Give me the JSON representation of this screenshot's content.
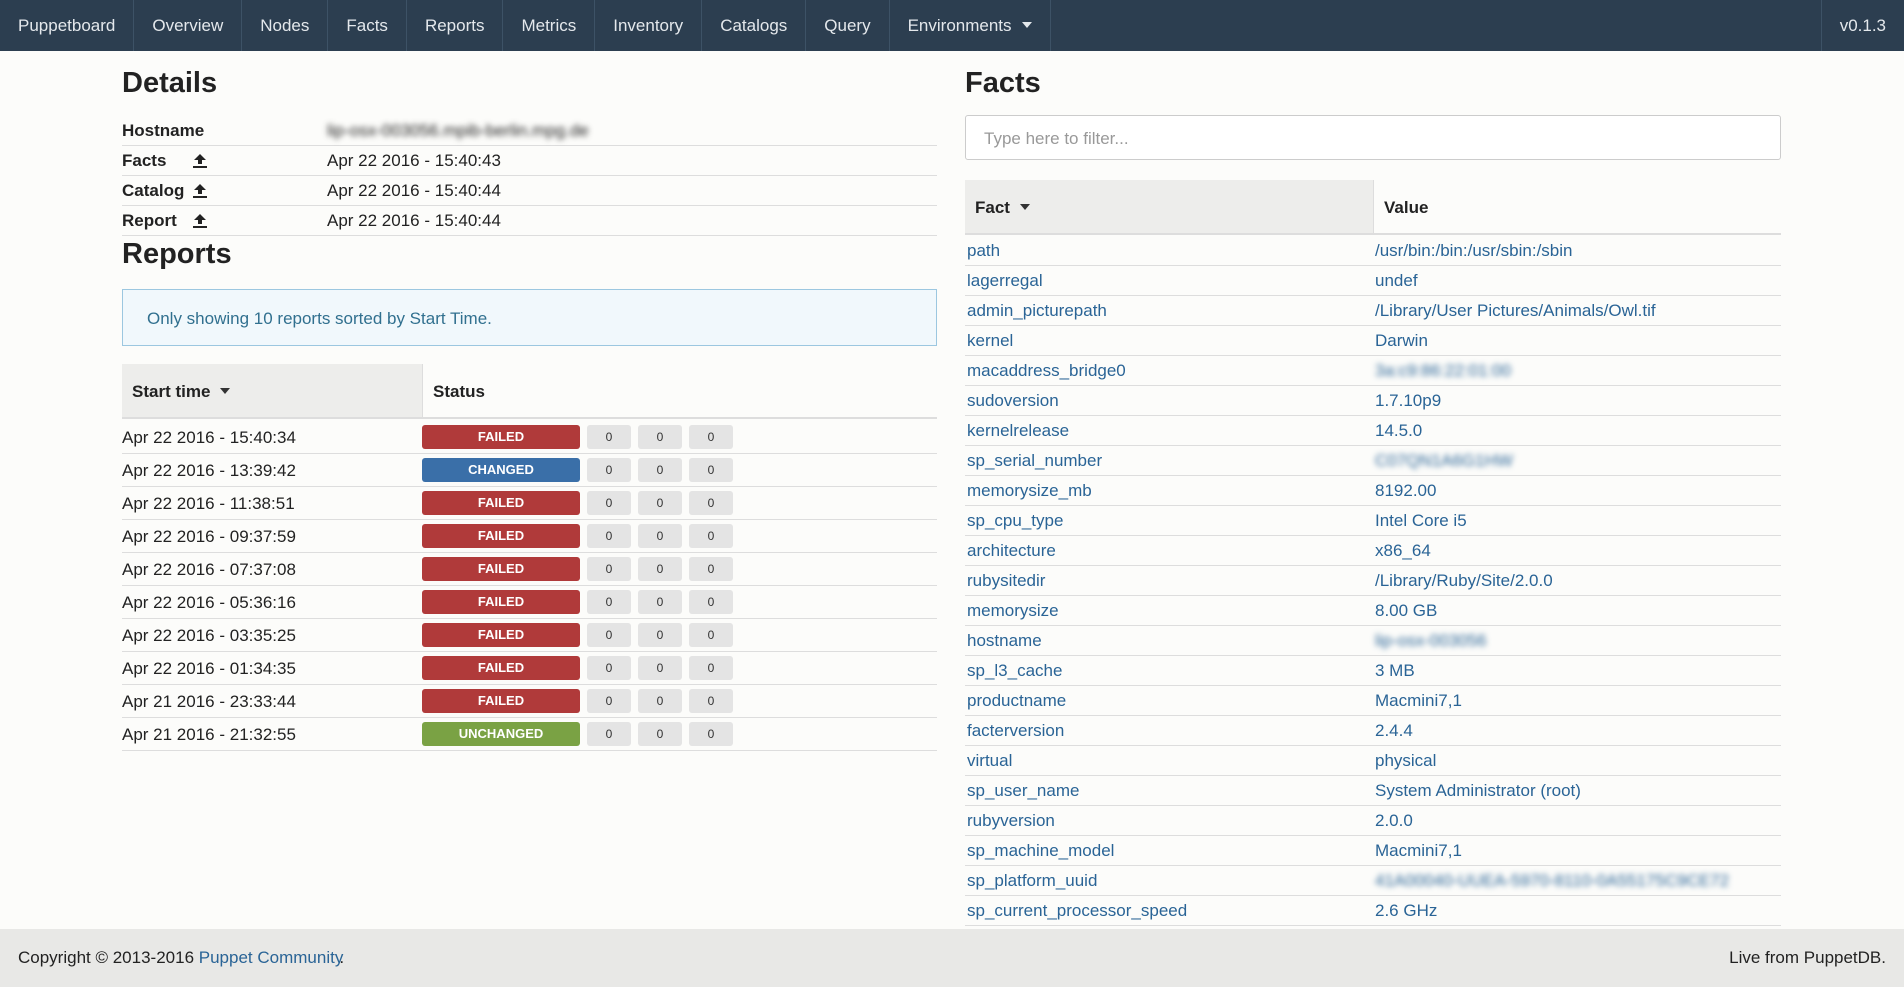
{
  "navbar": {
    "brand": "Puppetboard",
    "items": [
      "Overview",
      "Nodes",
      "Facts",
      "Reports",
      "Metrics",
      "Inventory",
      "Catalogs",
      "Query",
      "Environments"
    ],
    "version": "v0.1.3"
  },
  "details": {
    "title": "Details",
    "rows": [
      [
        "Hostname",
        "lip-osx-003056.mpib-berlin.mpg.de"
      ],
      [
        "Facts",
        "Apr 22 2016 - 15:40:43"
      ],
      [
        "Catalog",
        "Apr 22 2016 - 15:40:44"
      ],
      [
        "Report",
        "Apr 22 2016 - 15:40:44"
      ]
    ]
  },
  "reports": {
    "title": "Reports",
    "info": "Only showing 10 reports sorted by Start Time.",
    "headers": [
      "Start time",
      "Status"
    ],
    "rows": [
      [
        "Apr 22 2016 - 15:40:34",
        "FAILED",
        0,
        0,
        0
      ],
      [
        "Apr 22 2016 - 13:39:42",
        "CHANGED",
        0,
        0,
        0
      ],
      [
        "Apr 22 2016 - 11:38:51",
        "FAILED",
        0,
        0,
        0
      ],
      [
        "Apr 22 2016 - 09:37:59",
        "FAILED",
        0,
        0,
        0
      ],
      [
        "Apr 22 2016 - 07:37:08",
        "FAILED",
        0,
        0,
        0
      ],
      [
        "Apr 22 2016 - 05:36:16",
        "FAILED",
        0,
        0,
        0
      ],
      [
        "Apr 22 2016 - 03:35:25",
        "FAILED",
        0,
        0,
        0
      ],
      [
        "Apr 22 2016 - 01:34:35",
        "FAILED",
        0,
        0,
        0
      ],
      [
        "Apr 21 2016 - 23:33:44",
        "FAILED",
        0,
        0,
        0
      ],
      [
        "Apr 21 2016 - 21:32:55",
        "UNCHANGED",
        0,
        0,
        0
      ]
    ]
  },
  "facts": {
    "title": "Facts",
    "filter_placeholder": "Type here to filter...",
    "headers": [
      "Fact",
      "Value"
    ],
    "rows": [
      [
        "path",
        "/usr/bin:/bin:/usr/sbin:/sbin"
      ],
      [
        "lagerregal",
        "undef"
      ],
      [
        "admin_picturepath",
        "/Library/User Pictures/Animals/Owl.tif"
      ],
      [
        "kernel",
        "Darwin"
      ],
      [
        "macaddress_bridge0",
        "3a:c9:86:22:01:00"
      ],
      [
        "sudoversion",
        "1.7.10p9"
      ],
      [
        "kernelrelease",
        "14.5.0"
      ],
      [
        "sp_serial_number",
        "C07QN1A6G1HW"
      ],
      [
        "memorysize_mb",
        "8192.00"
      ],
      [
        "sp_cpu_type",
        "Intel Core i5"
      ],
      [
        "architecture",
        "x86_64"
      ],
      [
        "rubysitedir",
        "/Library/Ruby/Site/2.0.0"
      ],
      [
        "memorysize",
        "8.00 GB"
      ],
      [
        "hostname",
        "lip-osx-003056"
      ],
      [
        "sp_l3_cache",
        "3 MB"
      ],
      [
        "productname",
        "Macmini7,1"
      ],
      [
        "facterversion",
        "2.4.4"
      ],
      [
        "virtual",
        "physical"
      ],
      [
        "sp_user_name",
        "System Administrator (root)"
      ],
      [
        "rubyversion",
        "2.0.0"
      ],
      [
        "sp_machine_model",
        "Macmini7,1"
      ],
      [
        "sp_platform_uuid",
        "41A00040-UUEA-5970-8110-0A55175C9CE72"
      ],
      [
        "sp_current_processor_speed",
        "2.6 GHz"
      ]
    ]
  },
  "footer": {
    "copyright": "Copyright © 2013-2016",
    "link": "Puppet Community",
    "link_suffix": ".",
    "live": "Live from PuppetDB."
  }
}
